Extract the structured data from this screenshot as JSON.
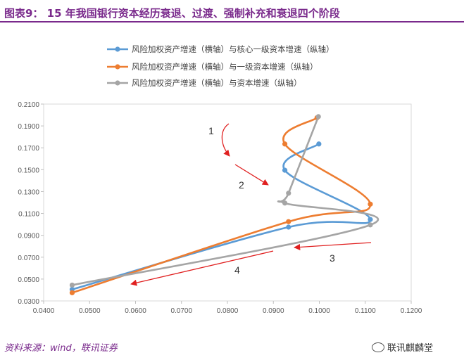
{
  "header": {
    "title": "图表9： 15 年我国银行资本经历衰退、过渡、强制补充和衰退四个阶段"
  },
  "footer": {
    "source": "资料来源：wind，联讯证券",
    "watermark": "联讯麒麟堂"
  },
  "colors": {
    "title": "#7a2a8c",
    "series": [
      "#5b9bd5",
      "#ed7d31",
      "#a5a5a5"
    ],
    "arrow": "#e02020"
  },
  "chart_data": {
    "type": "scatter",
    "smooth": true,
    "xlim": [
      0.04,
      0.12
    ],
    "ylim": [
      0.03,
      0.21
    ],
    "xticks": [
      "0.0400",
      "0.0500",
      "0.0600",
      "0.0700",
      "0.0800",
      "0.0900",
      "0.1000",
      "0.1100",
      "0.1200"
    ],
    "yticks": [
      "0.0300",
      "0.0500",
      "0.0700",
      "0.0900",
      "0.1100",
      "0.1300",
      "0.1500",
      "0.1700",
      "0.1900",
      "0.2100"
    ],
    "grid": false,
    "legend_position": "top",
    "series": [
      {
        "name": "风险加权资产增速（横轴）与核心一级资本增速（纵轴）",
        "points": [
          [
            0.0999,
            0.1735
          ],
          [
            0.0925,
            0.1495
          ],
          [
            0.1111,
            0.1045
          ],
          [
            0.0933,
            0.0975
          ],
          [
            0.0462,
            0.0405
          ]
        ]
      },
      {
        "name": "风险加权资产增速（横轴）与一级资本增速（纵轴）",
        "points": [
          [
            0.0995,
            0.1975
          ],
          [
            0.0925,
            0.1735
          ],
          [
            0.1111,
            0.1185
          ],
          [
            0.0933,
            0.1025
          ],
          [
            0.0462,
            0.0375
          ]
        ]
      },
      {
        "name": "风险加权资产增速（横轴）与资本增速（纵轴）",
        "points": [
          [
            0.0998,
            0.1985
          ],
          [
            0.0933,
            0.1285
          ],
          [
            0.0925,
            0.1195
          ],
          [
            0.1111,
            0.0995
          ],
          [
            0.0462,
            0.0445
          ]
        ]
      }
    ],
    "annotations": [
      {
        "label": "1"
      },
      {
        "label": "2"
      },
      {
        "label": "3"
      },
      {
        "label": "4"
      }
    ]
  }
}
